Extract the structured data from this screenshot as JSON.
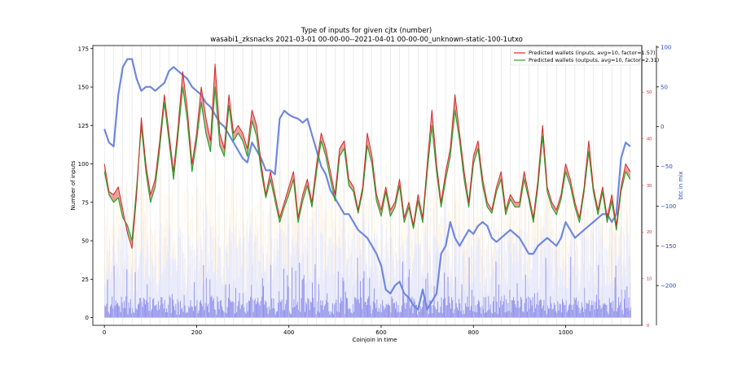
{
  "chart_data": {
    "type": "line",
    "title": "Type of inputs for given cjtx (number)",
    "subtitle": "wasabi1_zksnacks 2021-03-01 00-00-00--2021-04-01 00-00-00_unknown-static-100-1utxo",
    "xlabel": "Coinjoin in time",
    "ylabel": "Number of inputs",
    "y2label": "btc in mix",
    "xlim": [
      -25,
      1165
    ],
    "ylim": [
      -5,
      177
    ],
    "y2lim": [
      -250,
      102
    ],
    "y3lim": [
      0,
      60
    ],
    "x_ticks": [
      "0",
      "200",
      "400",
      "600",
      "800",
      "1000"
    ],
    "y_ticks": [
      "0",
      "25",
      "50",
      "75",
      "100",
      "125",
      "150",
      "175"
    ],
    "y2_ticks": [
      "100",
      "50",
      "0",
      "−50",
      "−100",
      "−150",
      "−200"
    ],
    "y3_ticks": [
      "0",
      "10",
      "20",
      "30",
      "40",
      "50"
    ],
    "legend_position": "top-right",
    "series": [
      {
        "name": "Predicted wallets (inputs, avg=10, factor=1.57)",
        "color": "#d62728",
        "x": [
          0,
          10,
          20,
          30,
          40,
          50,
          60,
          70,
          80,
          90,
          100,
          110,
          120,
          130,
          140,
          150,
          160,
          170,
          180,
          190,
          200,
          210,
          220,
          230,
          240,
          250,
          260,
          270,
          280,
          290,
          300,
          310,
          320,
          330,
          340,
          350,
          360,
          370,
          380,
          390,
          400,
          410,
          420,
          430,
          440,
          450,
          460,
          470,
          480,
          490,
          500,
          510,
          520,
          530,
          540,
          550,
          560,
          570,
          580,
          590,
          600,
          610,
          620,
          630,
          640,
          650,
          660,
          670,
          680,
          690,
          700,
          710,
          720,
          730,
          740,
          750,
          760,
          770,
          780,
          790,
          800,
          810,
          820,
          830,
          840,
          850,
          860,
          870,
          880,
          890,
          900,
          910,
          920,
          930,
          940,
          950,
          960,
          970,
          980,
          990,
          1000,
          1010,
          1020,
          1030,
          1040,
          1050,
          1060,
          1070,
          1080,
          1090,
          1100,
          1110,
          1120,
          1130,
          1140
        ],
        "values": [
          100,
          82,
          80,
          85,
          70,
          55,
          45,
          80,
          130,
          100,
          80,
          90,
          115,
          145,
          120,
          95,
          125,
          160,
          135,
          100,
          120,
          150,
          130,
          115,
          165,
          120,
          110,
          145,
          120,
          125,
          120,
          110,
          135,
          125,
          100,
          80,
          95,
          80,
          65,
          75,
          85,
          95,
          65,
          80,
          90,
          75,
          100,
          120,
          110,
          95,
          80,
          110,
          115,
          90,
          85,
          70,
          85,
          120,
          105,
          80,
          70,
          85,
          70,
          75,
          90,
          65,
          75,
          60,
          80,
          65,
          100,
          135,
          100,
          75,
          95,
          110,
          145,
          120,
          95,
          75,
          105,
          115,
          90,
          75,
          70,
          85,
          95,
          70,
          80,
          75,
          75,
          95,
          80,
          65,
          90,
          125,
          85,
          75,
          70,
          80,
          100,
          90,
          75,
          65,
          85,
          115,
          85,
          70,
          85,
          65,
          80,
          60,
          85,
          100,
          95
        ],
        "fill_values": [
          100,
          82,
          80,
          85,
          70,
          55,
          45,
          80,
          130,
          100,
          80,
          90,
          115,
          145,
          120,
          95,
          125,
          160,
          135,
          100,
          120,
          150,
          130,
          115,
          165,
          120,
          110,
          145,
          120,
          125,
          120,
          110,
          135,
          125,
          100,
          80,
          95,
          80,
          65,
          75,
          85,
          95,
          65,
          80,
          90,
          75,
          100,
          120,
          110,
          95,
          80,
          110,
          115,
          90,
          85,
          70,
          85,
          120,
          105,
          80,
          70,
          85,
          70,
          75,
          90,
          65,
          75,
          60,
          80,
          65,
          100,
          135,
          100,
          75,
          95,
          110,
          145,
          120,
          95,
          75,
          105,
          115,
          90,
          75,
          70,
          85,
          95,
          70,
          80,
          75,
          75,
          95,
          80,
          65,
          90,
          125,
          85,
          75,
          70,
          80,
          100,
          90,
          75,
          65,
          85,
          115,
          85,
          70,
          85,
          65,
          80,
          60,
          85,
          100,
          95
        ]
      },
      {
        "name": "Predicted wallets (outputs, avg=10, factor=2.31)",
        "color": "#2ca02c",
        "x": [
          0,
          10,
          20,
          30,
          40,
          50,
          60,
          70,
          80,
          90,
          100,
          110,
          120,
          130,
          140,
          150,
          160,
          170,
          180,
          190,
          200,
          210,
          220,
          230,
          240,
          250,
          260,
          270,
          280,
          290,
          300,
          310,
          320,
          330,
          340,
          350,
          360,
          370,
          380,
          390,
          400,
          410,
          420,
          430,
          440,
          450,
          460,
          470,
          480,
          490,
          500,
          510,
          520,
          530,
          540,
          550,
          560,
          570,
          580,
          590,
          600,
          610,
          620,
          630,
          640,
          650,
          660,
          670,
          680,
          690,
          700,
          710,
          720,
          730,
          740,
          750,
          760,
          770,
          780,
          790,
          800,
          810,
          820,
          830,
          840,
          850,
          860,
          870,
          880,
          890,
          900,
          910,
          920,
          930,
          940,
          950,
          960,
          970,
          980,
          990,
          1000,
          1010,
          1020,
          1030,
          1040,
          1050,
          1060,
          1070,
          1080,
          1090,
          1100,
          1110,
          1120,
          1130,
          1140
        ],
        "values": [
          95,
          80,
          75,
          78,
          65,
          60,
          50,
          85,
          125,
          95,
          75,
          85,
          110,
          140,
          115,
          90,
          120,
          150,
          128,
          95,
          115,
          140,
          120,
          108,
          150,
          112,
          105,
          138,
          115,
          120,
          115,
          105,
          128,
          118,
          95,
          78,
          90,
          76,
          62,
          72,
          80,
          90,
          62,
          76,
          86,
          72,
          95,
          115,
          105,
          90,
          76,
          105,
          110,
          86,
          82,
          68,
          82,
          112,
          100,
          76,
          66,
          82,
          66,
          72,
          86,
          62,
          72,
          58,
          76,
          62,
          95,
          125,
          95,
          72,
          90,
          105,
          135,
          115,
          90,
          72,
          100,
          110,
          86,
          72,
          68,
          82,
          90,
          67,
          77,
          72,
          72,
          90,
          77,
          62,
          86,
          118,
          82,
          72,
          67,
          77,
          95,
          86,
          72,
          62,
          82,
          108,
          82,
          67,
          82,
          62,
          76,
          57,
          82,
          95,
          90
        ]
      },
      {
        "name": "btc in mix",
        "color": "#4a6be0",
        "axis": "right",
        "x": [
          0,
          10,
          20,
          30,
          40,
          50,
          60,
          70,
          80,
          90,
          100,
          110,
          120,
          130,
          140,
          150,
          160,
          170,
          180,
          190,
          200,
          210,
          220,
          230,
          240,
          250,
          260,
          270,
          280,
          290,
          300,
          310,
          320,
          330,
          340,
          350,
          360,
          370,
          380,
          390,
          400,
          410,
          420,
          430,
          440,
          450,
          460,
          470,
          480,
          490,
          500,
          510,
          520,
          530,
          540,
          550,
          560,
          570,
          580,
          590,
          600,
          610,
          620,
          630,
          640,
          650,
          660,
          670,
          680,
          690,
          700,
          710,
          720,
          730,
          740,
          750,
          760,
          770,
          780,
          790,
          800,
          810,
          820,
          830,
          840,
          850,
          860,
          870,
          880,
          890,
          900,
          910,
          920,
          930,
          940,
          950,
          960,
          970,
          980,
          990,
          1000,
          1010,
          1020,
          1030,
          1040,
          1050,
          1060,
          1070,
          1080,
          1090,
          1100,
          1110,
          1120,
          1130,
          1140
        ],
        "values": [
          -3,
          -20,
          -25,
          40,
          75,
          85,
          85,
          60,
          45,
          50,
          50,
          45,
          50,
          55,
          70,
          75,
          70,
          65,
          60,
          50,
          45,
          40,
          30,
          25,
          15,
          5,
          0,
          -10,
          -20,
          -30,
          -40,
          -45,
          -20,
          -30,
          -40,
          -55,
          -55,
          -60,
          10,
          20,
          15,
          12,
          10,
          5,
          10,
          -10,
          -30,
          -50,
          -60,
          -80,
          -90,
          -100,
          -110,
          -110,
          -120,
          -130,
          -135,
          -140,
          -150,
          -160,
          -175,
          -205,
          -210,
          -200,
          -195,
          -210,
          -215,
          -225,
          -230,
          -205,
          -230,
          -220,
          -210,
          -160,
          -150,
          -120,
          -140,
          -150,
          -140,
          -130,
          -135,
          -125,
          -120,
          -125,
          -140,
          -145,
          -140,
          -135,
          -130,
          -135,
          -140,
          -150,
          -160,
          -160,
          -150,
          -145,
          -140,
          -145,
          -150,
          -140,
          -120,
          -130,
          -140,
          -135,
          -130,
          -125,
          -120,
          -115,
          -110,
          -110,
          -120,
          -110,
          -40,
          -20,
          -25
        ]
      }
    ],
    "bars_note": "Background bars (blue/orange/pink) per coinjoin: input type composition, drawn behind lines"
  }
}
